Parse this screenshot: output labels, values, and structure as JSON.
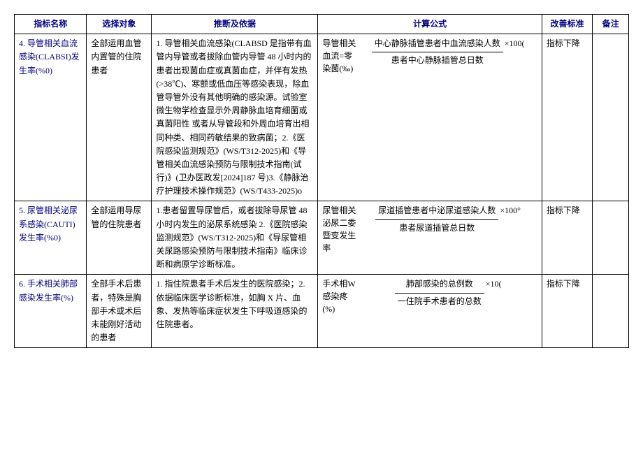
{
  "headers": {
    "name": "指标名称",
    "subject": "选择对象",
    "basis": "推断及依据",
    "formula": "计算公式",
    "standard": "改善标准",
    "remark": "备注"
  },
  "rows": [
    {
      "name": "4. 导管相关血流感染(CLABSI)发生率(%0)",
      "subject": "全部运用血管内置管的住院患者",
      "basis": "1. 导管相关血流感染(CLABSD 是指带有血管内导管或者拔除血管内导管 48 小时内的患者出现菌血症或真菌血症，并伴有发热(>38℃)、寒颤或低血压等感染表现，除血管导管外没有其他明确的感染源。试验室微生物学检查显示外周静脉血培育细菌或真菌阳性 或者从导管段和外周血培育出相同种类、相同药敏结果的致病菌；2.《医院感染监测规范》(WS/T312-2025)和《导管相关血流感染预防与限制技术指南(试行)》(卫办医政发[2024]187 号)3.《静脉治疗护理技术操作规范》(WS/T433-2025)o",
      "formula_label": "导管相关血流=零染菌(‰)",
      "formula_num": "中心静脉插管患者中血流感染人数",
      "formula_den": "患者中心静脉插管总日数",
      "formula_suffix": "×100(",
      "standard": "指标下降",
      "remark": ""
    },
    {
      "name": "5. 尿管相关泌尿系感染(CAUTI)发生率(%0)",
      "subject": "全部运用导尿管的住院患者",
      "basis": "1.患者留置导尿管后，或者拔除导尿管 48 小时内发生的泌尿系统感染 2.《医院感染监测规范》(WS/T312-2025)和《导尿管相关尿路感染预防与限制技术指南》临床诊断和病原学诊断标准。",
      "formula_label": "尿管相关泌尿二委暨变发生率",
      "formula_num": "尿道插管患者中泌尿道感染人数",
      "formula_den": "患者尿道插管总日数",
      "formula_suffix": "×100°",
      "standard": "指标下降",
      "remark": ""
    },
    {
      "name": "6. 手术相关肺部感染发生率(%)",
      "subject": "全部手术后患者，特殊是胸部手术或术后未能刚好活动的患者",
      "basis": "1. 指住院患者手术后发生的医院感染；2. 依据临床医学诊断标准，如胸 X 片、血象、发热等临床症状发生下呼吸道感染的住院患者。",
      "formula_label": "手术相W感染疼(%)",
      "formula_num": "肺部感染的总例数",
      "formula_den": "一住院手术患者的总数",
      "formula_suffix": "×10(",
      "standard": "指标下降",
      "remark": ""
    }
  ]
}
